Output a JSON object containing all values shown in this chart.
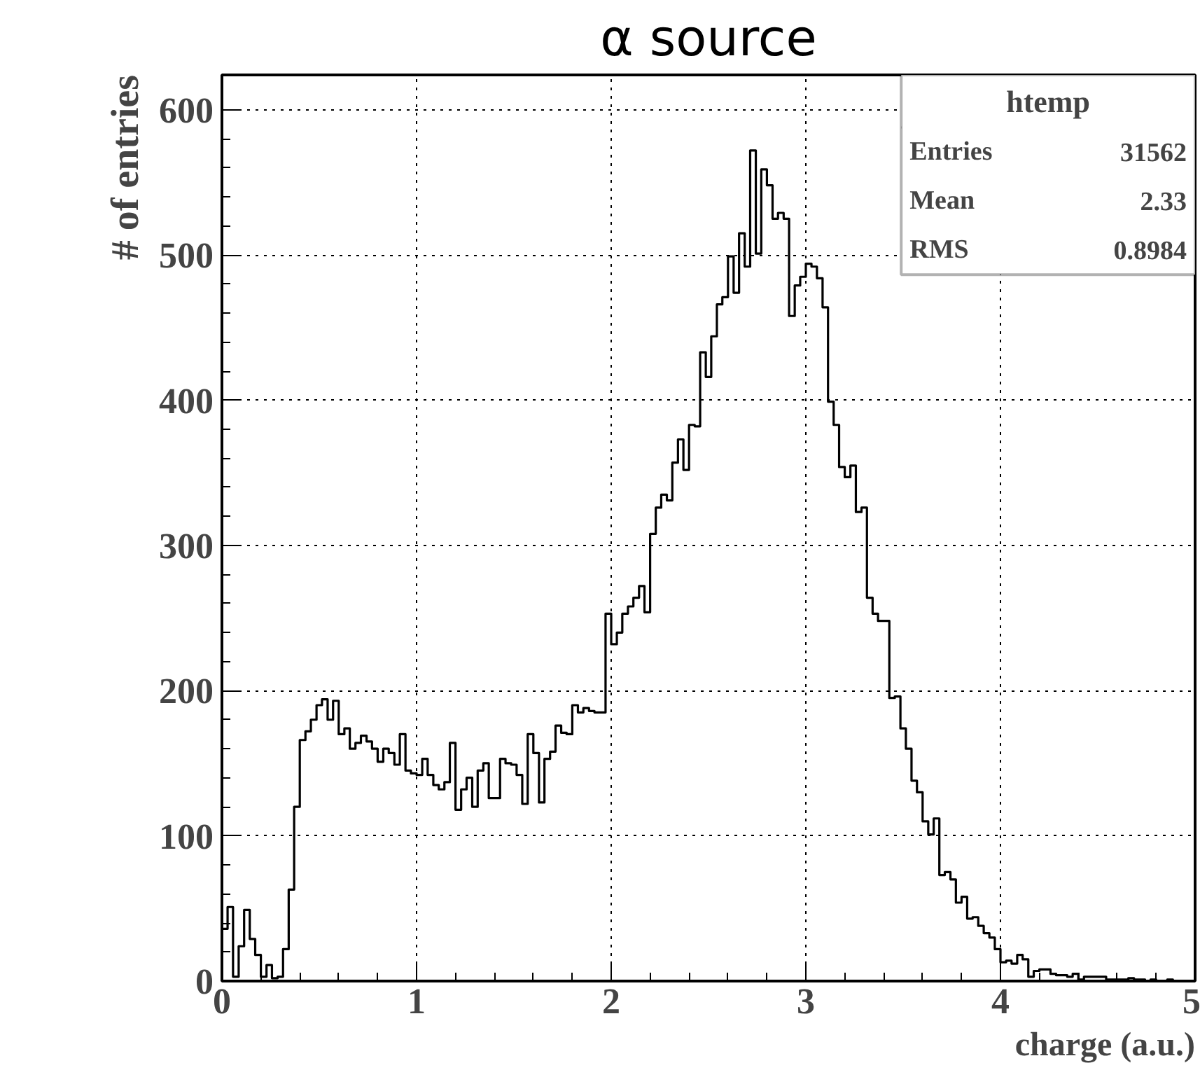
{
  "chart_data": {
    "type": "histogram",
    "title": "α source",
    "xlabel": "charge (a.u.)",
    "ylabel": "# of entries",
    "bins": [
      0,
      0.029,
      0.057,
      0.086,
      0.114,
      0.143,
      0.171,
      0.2,
      0.229,
      0.257,
      0.286,
      0.314,
      0.343,
      0.371,
      0.4,
      0.429,
      0.457,
      0.486,
      0.514,
      0.543,
      0.571,
      0.6,
      0.629,
      0.657,
      0.686,
      0.714,
      0.743,
      0.771,
      0.8,
      0.829,
      0.857,
      0.886,
      0.914,
      0.943,
      0.971,
      1.0,
      1.029,
      1.057,
      1.086,
      1.114,
      1.143,
      1.171,
      1.2,
      1.229,
      1.257,
      1.286,
      1.314,
      1.343,
      1.371,
      1.4,
      1.429,
      1.457,
      1.486,
      1.514,
      1.543,
      1.571,
      1.6,
      1.629,
      1.657,
      1.686,
      1.714,
      1.743,
      1.771,
      1.8,
      1.829,
      1.857,
      1.886,
      1.914,
      1.943,
      1.971,
      2.0,
      2.029,
      2.057,
      2.086,
      2.114,
      2.143,
      2.171,
      2.2,
      2.229,
      2.257,
      2.286,
      2.314,
      2.343,
      2.371,
      2.4,
      2.429,
      2.457,
      2.486,
      2.514,
      2.543,
      2.571,
      2.6,
      2.629,
      2.657,
      2.686,
      2.714,
      2.743,
      2.771,
      2.8,
      2.829,
      2.857,
      2.886,
      2.914,
      2.943,
      2.971,
      3.0,
      3.029,
      3.057,
      3.086,
      3.114,
      3.143,
      3.171,
      3.2,
      3.229,
      3.257,
      3.286,
      3.314,
      3.343,
      3.371,
      3.4,
      3.429,
      3.457,
      3.486,
      3.514,
      3.543,
      3.571,
      3.6,
      3.629,
      3.657,
      3.686,
      3.714,
      3.743,
      3.771,
      3.8,
      3.829,
      3.857,
      3.886,
      3.914,
      3.943,
      3.971,
      4.0,
      4.029,
      4.057,
      4.086,
      4.114,
      4.143,
      4.171,
      4.2,
      4.229,
      4.257,
      4.286,
      4.314,
      4.343,
      4.371,
      4.4,
      4.429,
      4.457,
      4.486,
      4.514,
      4.543,
      4.571,
      4.6,
      4.629,
      4.657,
      4.686,
      4.714,
      4.743,
      4.771,
      4.8,
      4.829,
      4.857,
      4.886,
      4.914,
      4.943,
      4.971,
      5.0
    ],
    "values": [
      36,
      51,
      3,
      24,
      49,
      29,
      18,
      3,
      11,
      2,
      3,
      22,
      63,
      120,
      166,
      172,
      180,
      190,
      194,
      180,
      193,
      170,
      174,
      160,
      164,
      169,
      165,
      160,
      151,
      160,
      157,
      149,
      170,
      145,
      143,
      142,
      153,
      142,
      135,
      132,
      137,
      164,
      118,
      132,
      140,
      120,
      145,
      150,
      126,
      126,
      153,
      150,
      149,
      142,
      122,
      170,
      157,
      123,
      153,
      158,
      176,
      171,
      170,
      190,
      185,
      188,
      186,
      185,
      185,
      253,
      232,
      240,
      253,
      258,
      264,
      272,
      254,
      308,
      326,
      335,
      331,
      357,
      373,
      352,
      383,
      382,
      433,
      416,
      444,
      466,
      471,
      499,
      474,
      515,
      492,
      572,
      501,
      559,
      548,
      525,
      529,
      525,
      458,
      479,
      485,
      494,
      492,
      484,
      464,
      399,
      383,
      354,
      347,
      355,
      323,
      326,
      264,
      253,
      248,
      248,
      195,
      196,
      174,
      160,
      138,
      130,
      110,
      101,
      112,
      73,
      75,
      70,
      54,
      58,
      43,
      44,
      38,
      33,
      30,
      22,
      13,
      14,
      12,
      18,
      15,
      3,
      7,
      8,
      8,
      5,
      4,
      4,
      3,
      5,
      1,
      3,
      3,
      3,
      3,
      1,
      1,
      1,
      1,
      2,
      1,
      1,
      0,
      1,
      0,
      0,
      1,
      0,
      0,
      0,
      0
    ],
    "color": "#000000",
    "xlim": [
      0,
      5
    ],
    "ylim": [
      0,
      624
    ],
    "xticks": [
      0,
      1,
      2,
      3,
      4,
      5
    ],
    "yticks": [
      0,
      100,
      200,
      300,
      400,
      500,
      600
    ],
    "grid": true,
    "annotations": [
      "htemp",
      "Entries",
      "31562",
      "Mean",
      "2.33",
      "RMS",
      "0.8984"
    ]
  }
}
